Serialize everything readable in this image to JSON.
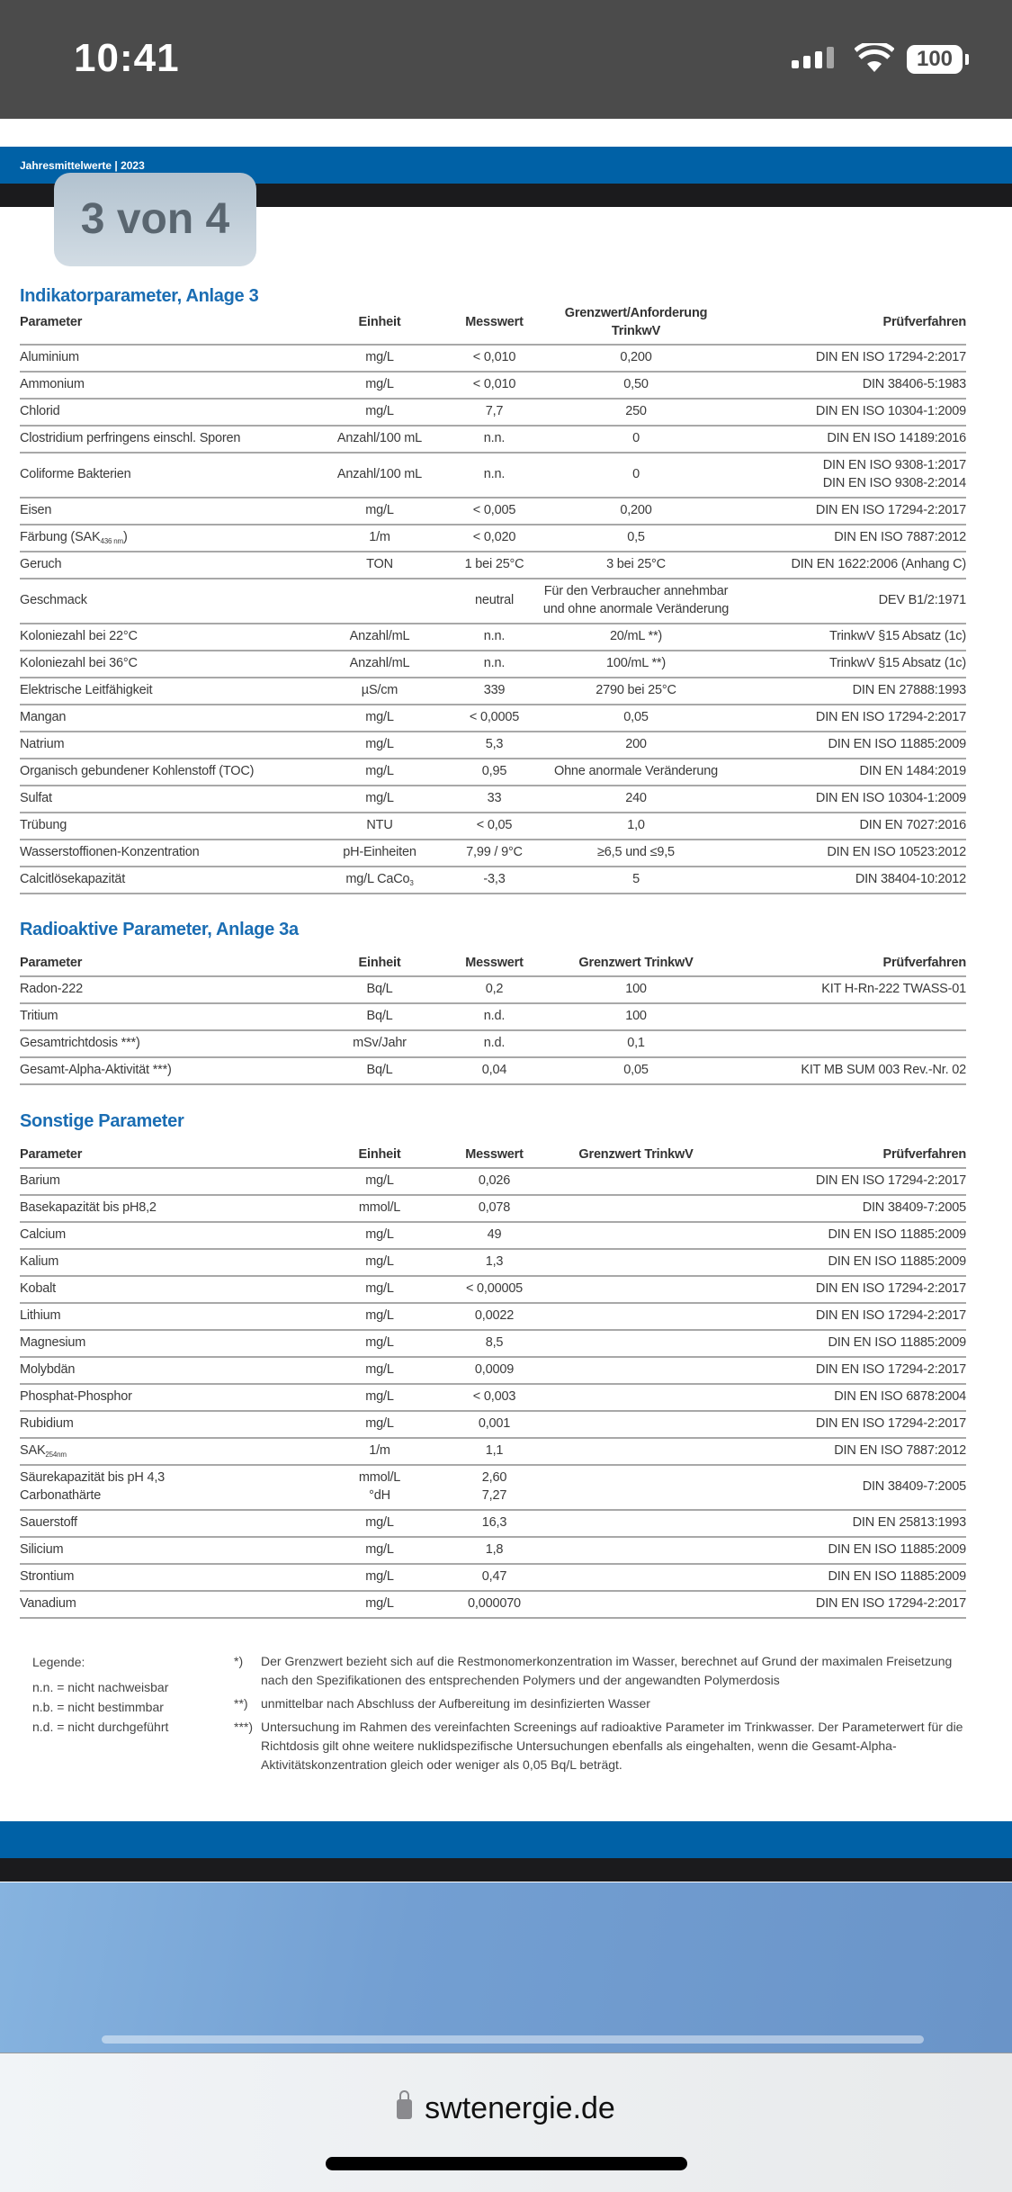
{
  "status_bar": {
    "time": "10:41",
    "battery": "100"
  },
  "document": {
    "header": "Jahresmittelwerte  |  2023",
    "page_indicator": "3 von 4",
    "sections": [
      {
        "title": "Indikatorparameter, Anlage 3",
        "columns": [
          "Parameter",
          "Einheit",
          "Messwert",
          [
            "Grenzwert/Anforderung",
            "TrinkwV"
          ],
          "Prüfverfahren"
        ],
        "rows": [
          [
            "Aluminium",
            "mg/L",
            "< 0,010",
            "0,200",
            "DIN EN ISO 17294-2:2017"
          ],
          [
            "Ammonium",
            "mg/L",
            "< 0,010",
            "0,50",
            "DIN 38406-5:1983"
          ],
          [
            "Chlorid",
            "mg/L",
            "7,7",
            "250",
            "DIN EN ISO 10304-1:2009"
          ],
          [
            "Clostridium perfringens einschl. Sporen",
            "Anzahl/100 mL",
            "n.n.",
            "0",
            "DIN EN ISO 14189:2016"
          ],
          [
            "Coliforme Bakterien",
            "Anzahl/100 mL",
            "n.n.",
            "0",
            [
              "DIN EN ISO 9308-1:2017",
              "DIN EN ISO 9308-2:2014"
            ]
          ],
          [
            "Eisen",
            "mg/L",
            "< 0,005",
            "0,200",
            "DIN EN ISO 17294-2:2017"
          ],
          [
            {
              "t": "Färbung (SAK",
              "sub": "436 nm",
              "a": ")"
            },
            "1/m",
            "< 0,020",
            "0,5",
            "DIN EN ISO 7887:2012"
          ],
          [
            "Geruch",
            "TON",
            "1 bei 25°C",
            "3 bei 25°C",
            "DIN EN 1622:2006 (Anhang C)"
          ],
          [
            "Geschmack",
            "",
            "neutral",
            [
              "Für den Verbraucher annehmbar",
              "und ohne anormale Veränderung"
            ],
            "DEV B1/2:1971"
          ],
          [
            "Koloniezahl bei 22°C",
            "Anzahl/mL",
            "n.n.",
            "20/mL **)",
            "TrinkwV §15 Absatz (1c)"
          ],
          [
            "Koloniezahl bei 36°C",
            "Anzahl/mL",
            "n.n.",
            "100/mL **)",
            "TrinkwV §15 Absatz (1c)"
          ],
          [
            "Elektrische Leitfähigkeit",
            "µS/cm",
            "339",
            "2790 bei 25°C",
            "DIN EN 27888:1993"
          ],
          [
            "Mangan",
            "mg/L",
            "< 0,0005",
            "0,05",
            "DIN EN ISO 17294-2:2017"
          ],
          [
            "Natrium",
            "mg/L",
            "5,3",
            "200",
            "DIN EN ISO 11885:2009"
          ],
          [
            "Organisch gebundener Kohlenstoff (TOC)",
            "mg/L",
            "0,95",
            "Ohne anormale Veränderung",
            "DIN EN 1484:2019"
          ],
          [
            "Sulfat",
            "mg/L",
            "33",
            "240",
            "DIN EN ISO 10304-1:2009"
          ],
          [
            "Trübung",
            "NTU",
            "< 0,05",
            "1,0",
            "DIN EN 7027:2016"
          ],
          [
            "Wasserstoffionen-Konzentration",
            "pH-Einheiten",
            "7,99 / 9°C",
            "≥6,5 und ≤9,5",
            "DIN EN ISO 10523:2012"
          ],
          [
            "Calcitlösekapazität",
            {
              "t": "mg/L CaCo",
              "sub": "3",
              "a": ""
            },
            "-3,3",
            "5",
            "DIN 38404-10:2012"
          ]
        ]
      },
      {
        "title": "Radioaktive Parameter, Anlage 3a",
        "columns": [
          "Parameter",
          "Einheit",
          "Messwert",
          "Grenzwert TrinkwV",
          "Prüfverfahren"
        ],
        "rows": [
          [
            "Radon-222",
            "Bq/L",
            "0,2",
            "100",
            "KIT H-Rn-222 TWASS-01"
          ],
          [
            "Tritium",
            "Bq/L",
            "n.d.",
            "100",
            ""
          ],
          [
            "Gesamtrichtdosis ***)",
            "mSv/Jahr",
            "n.d.",
            "0,1",
            ""
          ],
          [
            "Gesamt-Alpha-Aktivität ***)",
            "Bq/L",
            "0,04",
            "0,05",
            "KIT MB SUM 003 Rev.-Nr. 02"
          ]
        ]
      },
      {
        "title": "Sonstige Parameter",
        "columns": [
          "Parameter",
          "Einheit",
          "Messwert",
          "Grenzwert TrinkwV",
          "Prüfverfahren"
        ],
        "rows": [
          [
            "Barium",
            "mg/L",
            "0,026",
            "",
            "DIN EN ISO 17294-2:2017"
          ],
          [
            "Basekapazität bis pH8,2",
            "mmol/L",
            "0,078",
            "",
            "DIN 38409-7:2005"
          ],
          [
            "Calcium",
            "mg/L",
            "49",
            "",
            "DIN EN ISO 11885:2009"
          ],
          [
            "Kalium",
            "mg/L",
            "1,3",
            "",
            "DIN EN ISO 11885:2009"
          ],
          [
            "Kobalt",
            "mg/L",
            "< 0,00005",
            "",
            "DIN EN ISO 17294-2:2017"
          ],
          [
            "Lithium",
            "mg/L",
            "0,0022",
            "",
            "DIN EN ISO 17294-2:2017"
          ],
          [
            "Magnesium",
            "mg/L",
            "8,5",
            "",
            "DIN EN ISO 11885:2009"
          ],
          [
            "Molybdän",
            "mg/L",
            "0,0009",
            "",
            "DIN EN ISO 17294-2:2017"
          ],
          [
            "Phosphat-Phosphor",
            "mg/L",
            "< 0,003",
            "",
            "DIN EN ISO 6878:2004"
          ],
          [
            "Rubidium",
            "mg/L",
            "0,001",
            "",
            "DIN EN ISO 17294-2:2017"
          ],
          [
            {
              "t": "SAK",
              "sub": "254nm",
              "a": ""
            },
            "1/m",
            "1,1",
            "",
            "DIN EN ISO 7887:2012"
          ],
          [
            [
              "Säurekapazität bis pH 4,3",
              "Carbonathärte"
            ],
            [
              "mmol/L",
              "°dH"
            ],
            [
              "2,60",
              "7,27"
            ],
            "",
            "DIN 38409-7:2005"
          ],
          [
            "Sauerstoff",
            "mg/L",
            "16,3",
            "",
            "DIN EN 25813:1993"
          ],
          [
            "Silicium",
            "mg/L",
            "1,8",
            "",
            "DIN EN ISO 11885:2009"
          ],
          [
            "Strontium",
            "mg/L",
            "0,47",
            "",
            "DIN EN ISO 11885:2009"
          ],
          [
            "Vanadium",
            "mg/L",
            "0,000070",
            "",
            "DIN EN ISO 17294-2:2017"
          ]
        ]
      }
    ],
    "legend": {
      "title": "Legende:",
      "items": [
        "n.n. = nicht nachweisbar",
        "n.b. = nicht bestimmbar",
        "n.d. = nicht durchgeführt"
      ]
    },
    "notes": [
      {
        "mark": "*)",
        "text": "Der Grenzwert bezieht sich auf die Restmonomerkonzentration im Wasser, berechnet auf Grund der maximalen Freisetzung nach den Spezifikationen des entsprechenden Polymers und der angewandten Polymerdosis"
      },
      {
        "mark": "**)",
        "text": "unmittelbar nach Abschluss der Aufbereitung im desinfizierten Wasser"
      },
      {
        "mark": "***)",
        "text": "Untersuchung im Rahmen des vereinfachten Screenings auf radioaktive Parameter im Trinkwasser. Der Parameterwert für die Richtdosis gilt ohne weitere nuklidspezifische Untersuchungen ebenfalls als eingehalten, wenn die Gesamt-Alpha-Aktivitätskonzentration gleich oder weniger als 0,05 Bq/L beträgt."
      }
    ]
  },
  "browser": {
    "url": "swtenergie.de"
  },
  "colors": {
    "brand_blue": "#0061a6",
    "title_blue": "#1a6db3"
  }
}
